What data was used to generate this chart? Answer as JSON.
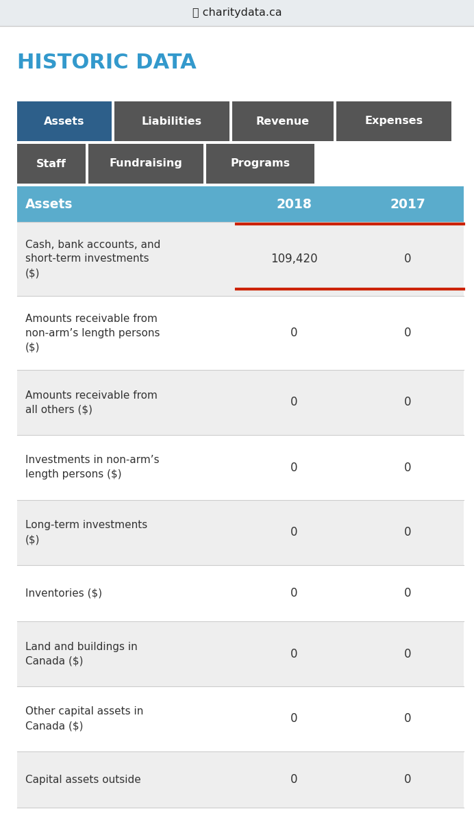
{
  "browser_bar_text": "🔒 charitydata.ca",
  "browser_bar_bg": "#e8ecef",
  "browser_bar_text_color": "#222222",
  "title": "HISTORIC DATA",
  "title_color": "#3399cc",
  "page_bg": "#ffffff",
  "tab_row1": [
    "Assets",
    "Liabilities",
    "Revenue",
    "Expenses"
  ],
  "tab_row2": [
    "Staff",
    "Fundraising",
    "Programs"
  ],
  "tab_active_bg": "#2d5f8a",
  "tab_inactive_bg": "#555555",
  "tab_text_color": "#ffffff",
  "header_bg": "#5aaccc",
  "header_text_color": "#ffffff",
  "header_label": "Assets",
  "header_col1": "2018",
  "header_col2": "2017",
  "red_underline_color": "#cc2200",
  "rows": [
    {
      "label": "Cash, bank accounts, and\nshort-term investments\n($)",
      "val2018": "109,420",
      "val2017": "0",
      "red_underline": true,
      "bg": "#eeeeee"
    },
    {
      "label": "Amounts receivable from\nnon-arm’s length persons\n($)",
      "val2018": "0",
      "val2017": "0",
      "red_underline": false,
      "bg": "#ffffff"
    },
    {
      "label": "Amounts receivable from\nall others ($)",
      "val2018": "0",
      "val2017": "0",
      "red_underline": false,
      "bg": "#eeeeee"
    },
    {
      "label": "Investments in non-arm’s\nlength persons ($)",
      "val2018": "0",
      "val2017": "0",
      "red_underline": false,
      "bg": "#ffffff"
    },
    {
      "label": "Long-term investments\n($)",
      "val2018": "0",
      "val2017": "0",
      "red_underline": false,
      "bg": "#eeeeee"
    },
    {
      "label": "Inventories ($)",
      "val2018": "0",
      "val2017": "0",
      "red_underline": false,
      "bg": "#ffffff"
    },
    {
      "label": "Land and buildings in\nCanada ($)",
      "val2018": "0",
      "val2017": "0",
      "red_underline": false,
      "bg": "#eeeeee"
    },
    {
      "label": "Other capital assets in\nCanada ($)",
      "val2018": "0",
      "val2017": "0",
      "red_underline": false,
      "bg": "#ffffff"
    },
    {
      "label": "Capital assets outside",
      "val2018": "0",
      "val2017": "0",
      "red_underline": false,
      "bg": "#eeeeee",
      "partial": true
    }
  ]
}
